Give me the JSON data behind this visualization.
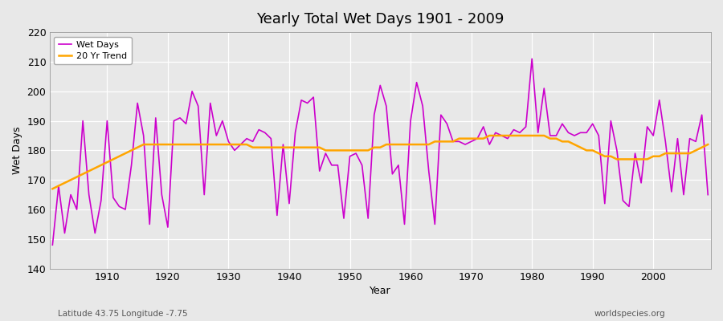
{
  "title": "Yearly Total Wet Days 1901 - 2009",
  "xlabel": "Year",
  "ylabel": "Wet Days",
  "lat_lon_label": "Latitude 43.75 Longitude -7.75",
  "watermark": "worldspecies.org",
  "line_color": "#CC00CC",
  "trend_color": "#FFA500",
  "background_color": "#E8E8E8",
  "plot_bg_color": "#E8E8E8",
  "ylim": [
    140,
    220
  ],
  "xlim": [
    1901,
    2009
  ],
  "years": [
    1901,
    1902,
    1903,
    1904,
    1905,
    1906,
    1907,
    1908,
    1909,
    1910,
    1911,
    1912,
    1913,
    1914,
    1915,
    1916,
    1917,
    1918,
    1919,
    1920,
    1921,
    1922,
    1923,
    1924,
    1925,
    1926,
    1927,
    1928,
    1929,
    1930,
    1931,
    1932,
    1933,
    1934,
    1935,
    1936,
    1937,
    1938,
    1939,
    1940,
    1941,
    1942,
    1943,
    1944,
    1945,
    1946,
    1947,
    1948,
    1949,
    1950,
    1951,
    1952,
    1953,
    1954,
    1955,
    1956,
    1957,
    1958,
    1959,
    1960,
    1961,
    1962,
    1963,
    1964,
    1965,
    1966,
    1967,
    1968,
    1969,
    1970,
    1971,
    1972,
    1973,
    1974,
    1975,
    1976,
    1977,
    1978,
    1979,
    1980,
    1981,
    1982,
    1983,
    1984,
    1985,
    1986,
    1987,
    1988,
    1989,
    1990,
    1991,
    1992,
    1993,
    1994,
    1995,
    1996,
    1997,
    1998,
    1999,
    2000,
    2001,
    2002,
    2003,
    2004,
    2005,
    2006,
    2007,
    2008,
    2009
  ],
  "wet_days": [
    148,
    168,
    152,
    165,
    160,
    190,
    165,
    152,
    163,
    190,
    164,
    161,
    160,
    175,
    196,
    185,
    155,
    191,
    165,
    154,
    190,
    191,
    189,
    200,
    195,
    165,
    196,
    185,
    190,
    183,
    180,
    182,
    184,
    183,
    187,
    186,
    184,
    158,
    182,
    162,
    186,
    197,
    196,
    198,
    173,
    179,
    175,
    175,
    157,
    178,
    179,
    175,
    157,
    192,
    202,
    195,
    172,
    175,
    155,
    190,
    203,
    195,
    173,
    155,
    192,
    189,
    183,
    183,
    182,
    183,
    184,
    188,
    182,
    186,
    185,
    184,
    187,
    186,
    188,
    211,
    186,
    201,
    185,
    185,
    189,
    186,
    185,
    186,
    186,
    189,
    185,
    162,
    190,
    180,
    163,
    161,
    179,
    169,
    188,
    185,
    197,
    183,
    166,
    184,
    165,
    184,
    183,
    192,
    165
  ],
  "legend_labels": [
    "Wet Days",
    "20 Yr Trend"
  ],
  "trend_values": [
    167,
    168,
    169,
    170,
    171,
    172,
    173,
    174,
    175,
    176,
    177,
    178,
    179,
    180,
    181,
    182,
    182,
    182,
    182,
    182,
    182,
    182,
    182,
    182,
    182,
    182,
    182,
    182,
    182,
    182,
    182,
    182,
    182,
    181,
    181,
    181,
    181,
    181,
    181,
    181,
    181,
    181,
    181,
    181,
    181,
    180,
    180,
    180,
    180,
    180,
    180,
    180,
    180,
    181,
    181,
    182,
    182,
    182,
    182,
    182,
    182,
    182,
    182,
    183,
    183,
    183,
    183,
    184,
    184,
    184,
    184,
    184,
    185,
    185,
    185,
    185,
    185,
    185,
    185,
    185,
    185,
    185,
    184,
    184,
    183,
    183,
    182,
    181,
    180,
    180,
    179,
    178,
    178,
    177,
    177,
    177,
    177,
    177,
    177,
    178,
    178,
    179,
    179,
    179,
    179,
    179,
    180,
    181,
    182
  ]
}
